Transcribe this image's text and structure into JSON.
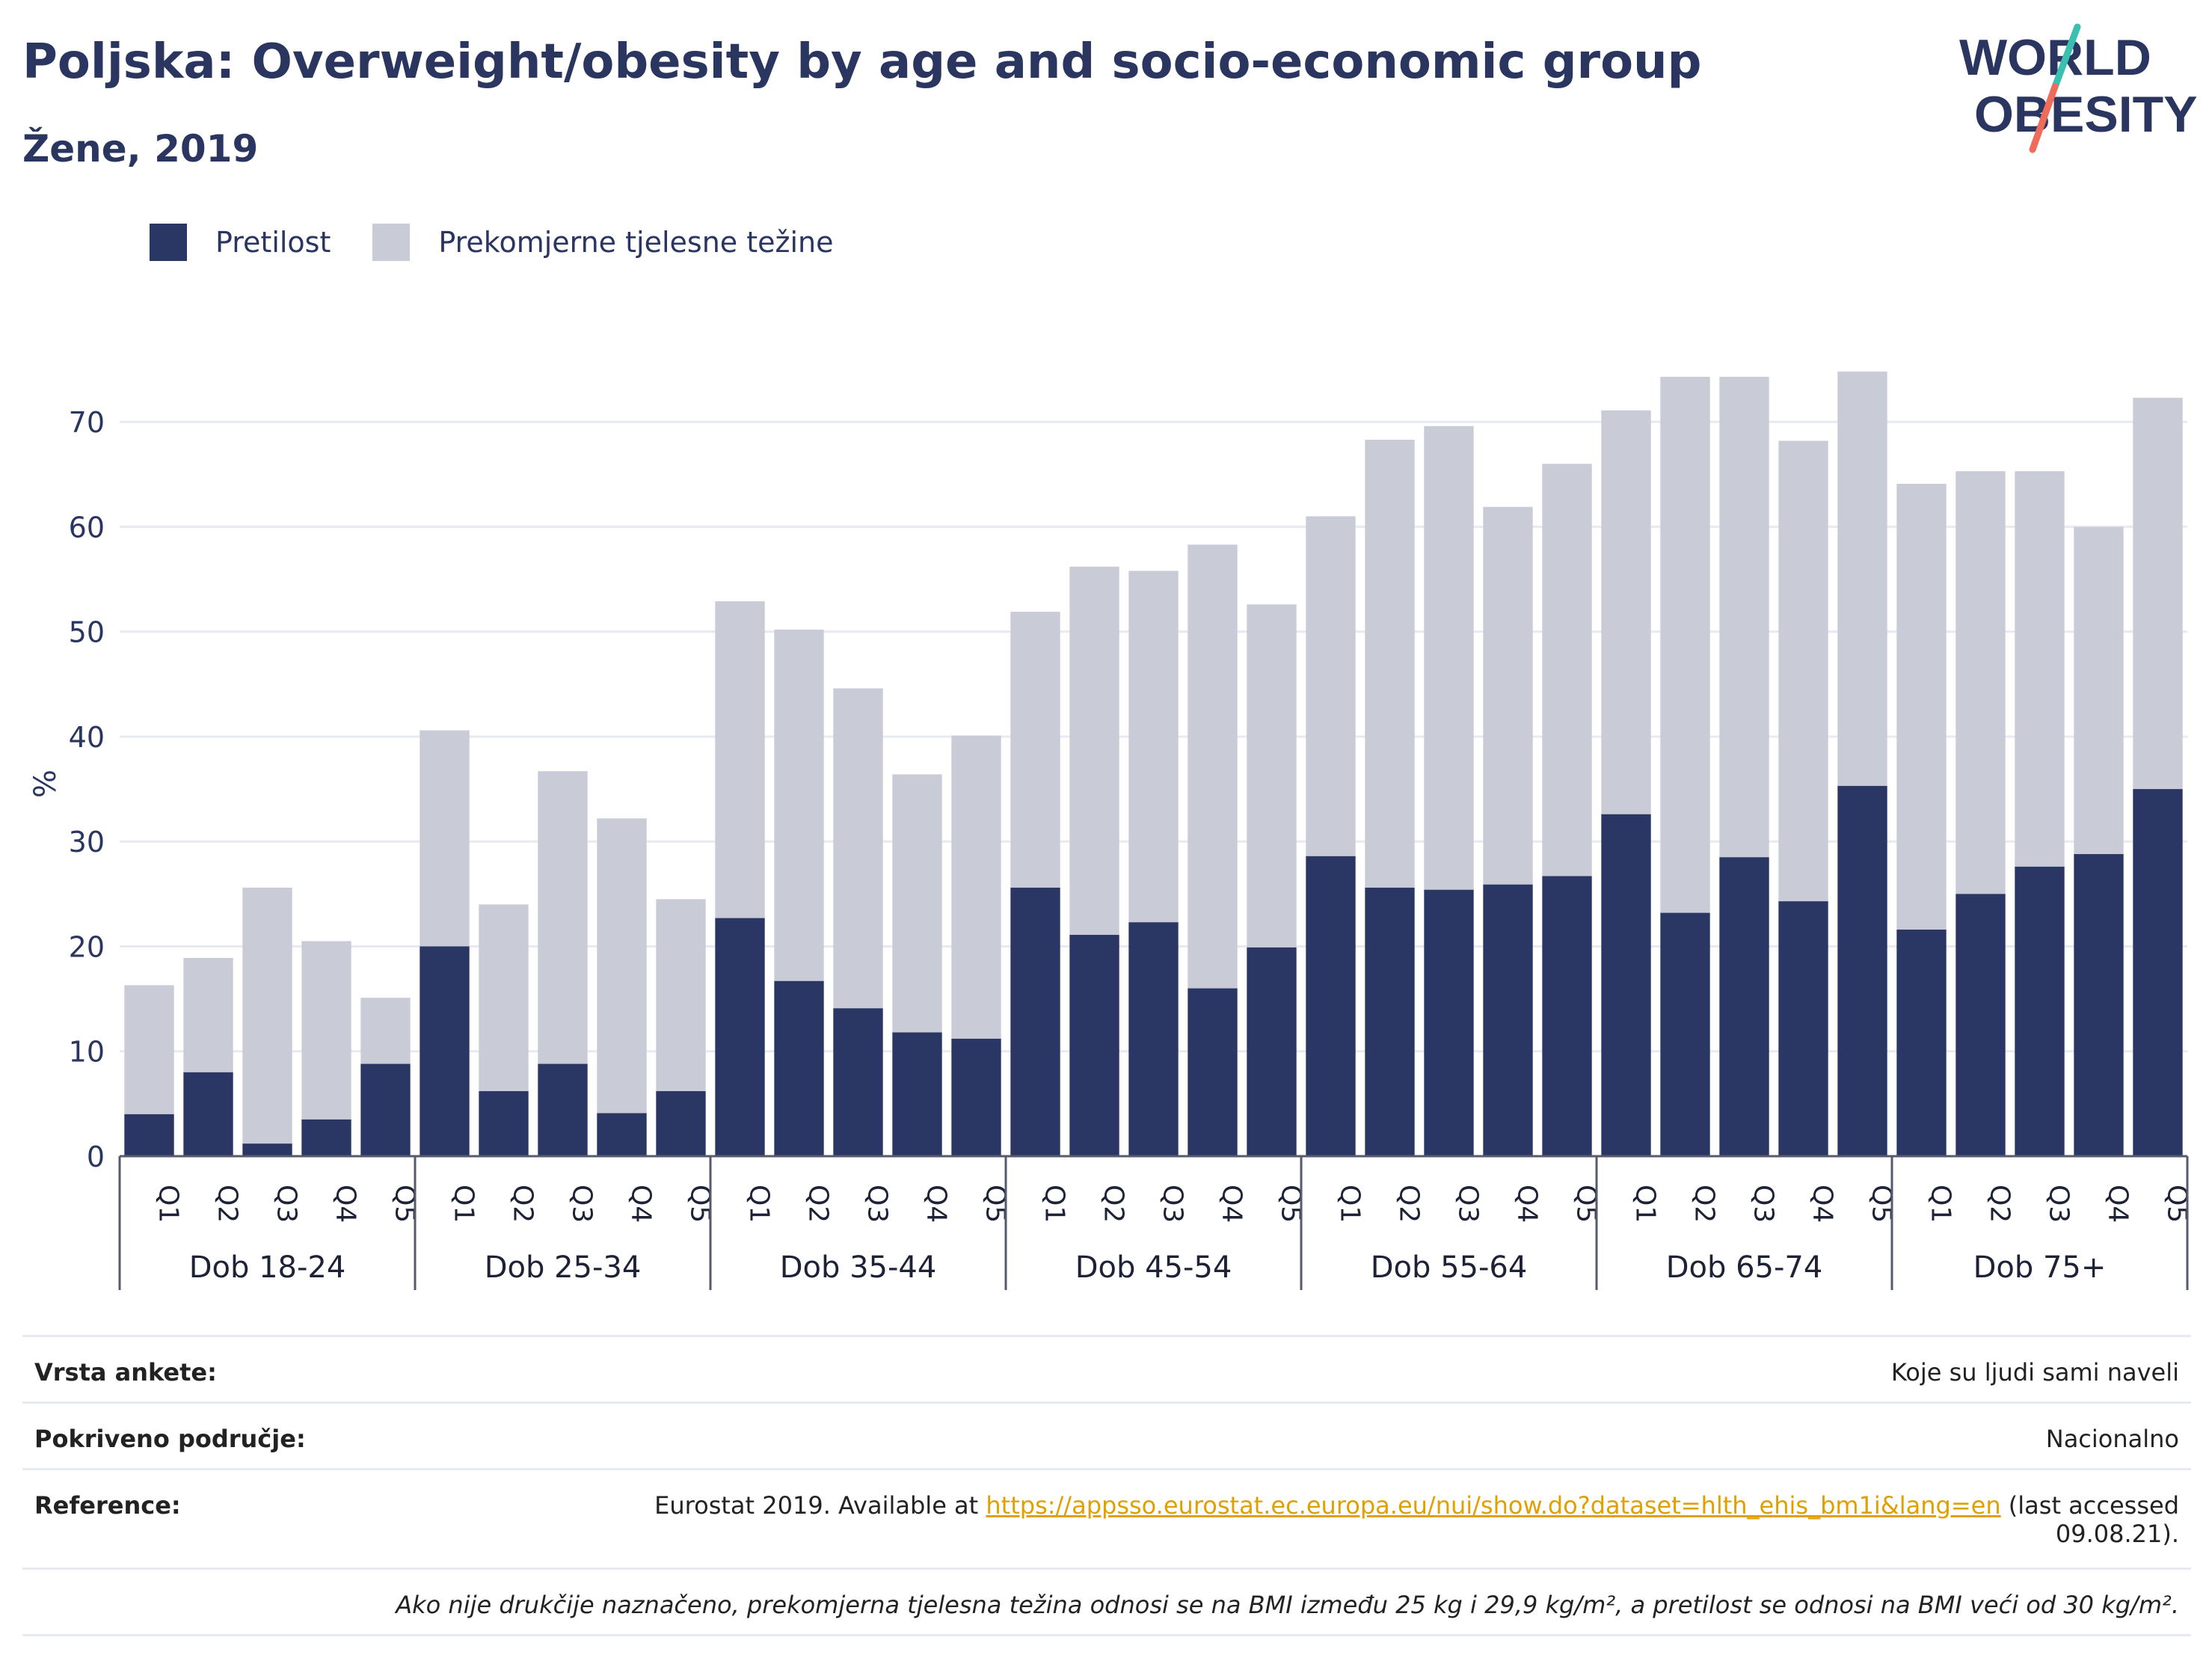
{
  "header": {
    "title": "Poljska: Overweight/obesity by age and socio-economic group",
    "subtitle": "Žene, 2019"
  },
  "logo": {
    "line1": "WORLD",
    "line2": "OBESITY",
    "icon": "world-obesity-logo"
  },
  "legend": {
    "obesity_label": "Pretilost",
    "overweight_label": "Prekomjerne tjelesne težine"
  },
  "colors": {
    "obesity": "#2a3663",
    "overweight": "#c9cbd7",
    "text": "#2a3560",
    "link": "#e0a100"
  },
  "chart_data": {
    "type": "bar",
    "stacked": true,
    "ylabel": "%",
    "ylim": [
      0,
      76
    ],
    "yticks": [
      0,
      10,
      20,
      30,
      40,
      50,
      60,
      70
    ],
    "grid": true,
    "legend_position": "top-left",
    "quintiles": [
      "Q1",
      "Q2",
      "Q3",
      "Q4",
      "Q5"
    ],
    "groups": [
      "Dob 18-24",
      "Dob 25-34",
      "Dob 35-44",
      "Dob 45-54",
      "Dob 55-64",
      "Dob 65-74",
      "Dob 75+"
    ],
    "series": [
      {
        "name": "Pretilost",
        "values": [
          4.0,
          8.0,
          1.2,
          3.5,
          8.8,
          20.0,
          6.2,
          8.8,
          4.1,
          6.2,
          22.7,
          16.7,
          14.1,
          11.8,
          11.2,
          25.6,
          21.1,
          22.3,
          16.0,
          19.9,
          28.6,
          25.6,
          25.4,
          25.9,
          26.7,
          32.6,
          23.2,
          28.5,
          24.3,
          35.3,
          21.6,
          25.0,
          27.6,
          28.8,
          35.0
        ]
      },
      {
        "name": "Prekomjerne tjelesne težine",
        "values": [
          12.3,
          10.9,
          24.4,
          17.0,
          6.3,
          20.6,
          17.8,
          27.9,
          28.1,
          18.3,
          30.2,
          33.5,
          30.5,
          24.6,
          28.9,
          26.3,
          35.1,
          33.5,
          42.3,
          32.7,
          32.4,
          42.7,
          44.2,
          36.0,
          39.3,
          38.5,
          51.1,
          45.8,
          43.9,
          39.5,
          42.5,
          40.3,
          37.7,
          31.2,
          37.3
        ]
      }
    ]
  },
  "info": {
    "survey_key": "Vrsta ankete:",
    "survey_value": "Koje su ljudi sami naveli",
    "coverage_key": "Pokriveno područje:",
    "coverage_value": "Nacionalno",
    "reference_key": "Reference:",
    "reference_prefix": "Eurostat 2019. Available at ",
    "reference_link": "https://appsso.eurostat.ec.europa.eu/nui/show.do?dataset=hlth_ehis_bm1i&lang=en",
    "reference_suffix": " (last accessed",
    "reference_date": "09.08.21).",
    "note": "Ako nije drukčije naznačeno, prekomjerna tjelesna težina odnosi se na BMI između 25 kg i 29,9 kg/m², a pretilost se odnosi na BMI veći od 30 kg/m²."
  }
}
